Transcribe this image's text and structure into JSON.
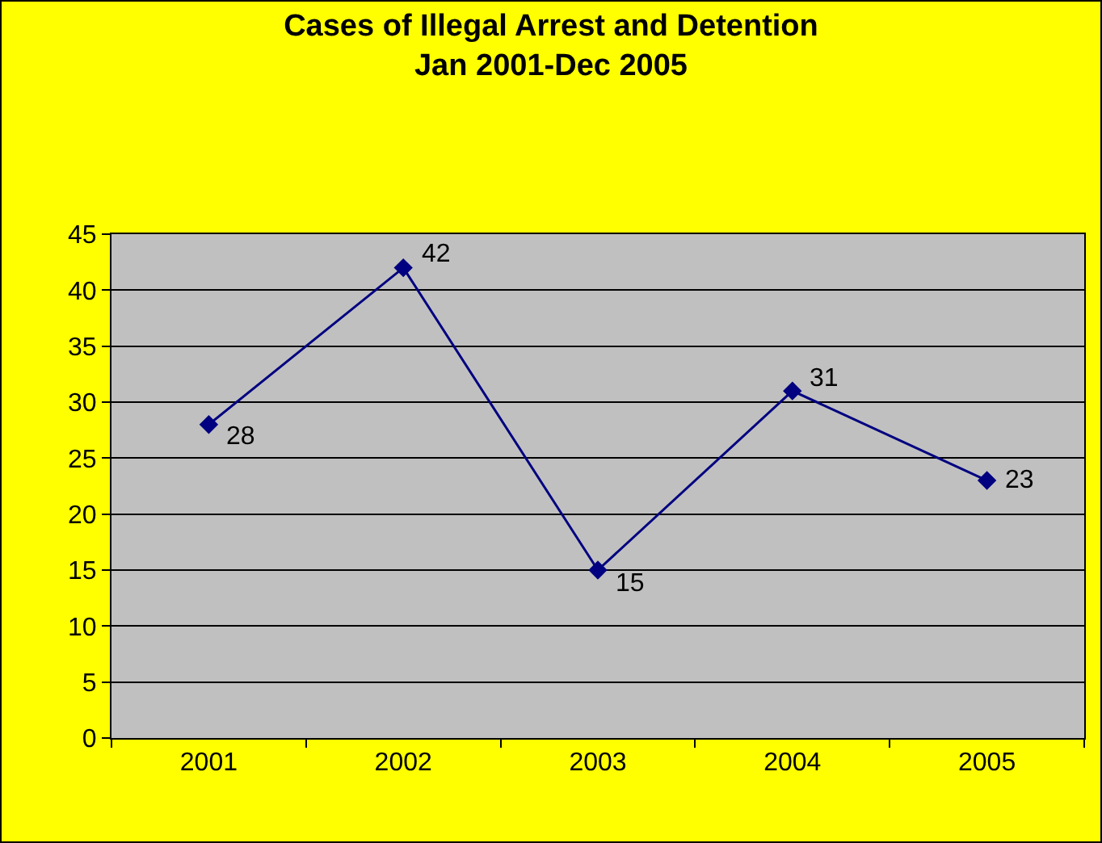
{
  "chart_data": {
    "type": "line",
    "title": "Cases of Illegal Arrest and Detention\nJan 2001-Dec 2005",
    "categories": [
      "2001",
      "2002",
      "2003",
      "2004",
      "2005"
    ],
    "series": [
      {
        "color": "#000080",
        "values": [
          28,
          42,
          15,
          31,
          23
        ]
      }
    ],
    "ylim": [
      0,
      45
    ],
    "yticks": [
      0,
      5,
      10,
      15,
      20,
      25,
      30,
      35,
      40,
      45
    ],
    "grid": "y",
    "marker": "diamond",
    "line_style": "solid",
    "data_labels": true
  }
}
